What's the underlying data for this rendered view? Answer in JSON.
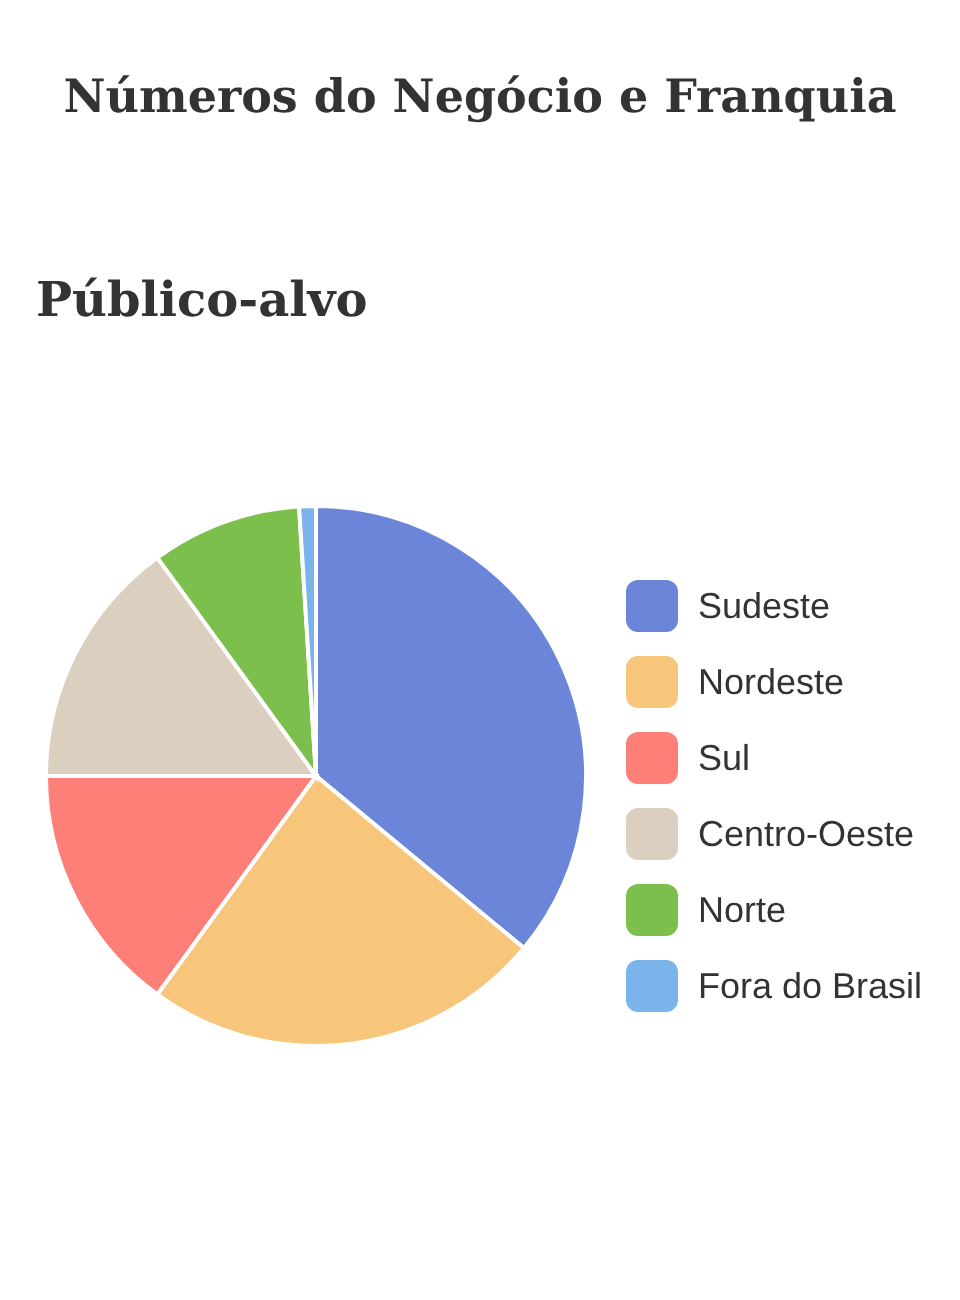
{
  "chart_data": {
    "type": "pie",
    "title": "Números do Negócio e Franquia",
    "subtitle": "Público-alvo",
    "categories": [
      "Sudeste",
      "Nordeste",
      "Sul",
      "Centro-Oeste",
      "Norte",
      "Fora do Brasil"
    ],
    "values": [
      36,
      24,
      15,
      15,
      9,
      1
    ],
    "colors": [
      "#6b85d8",
      "#f7c67a",
      "#fe7f78",
      "#dbd0bf",
      "#7dbf4c",
      "#7ab4ea"
    ],
    "legend": "right"
  }
}
